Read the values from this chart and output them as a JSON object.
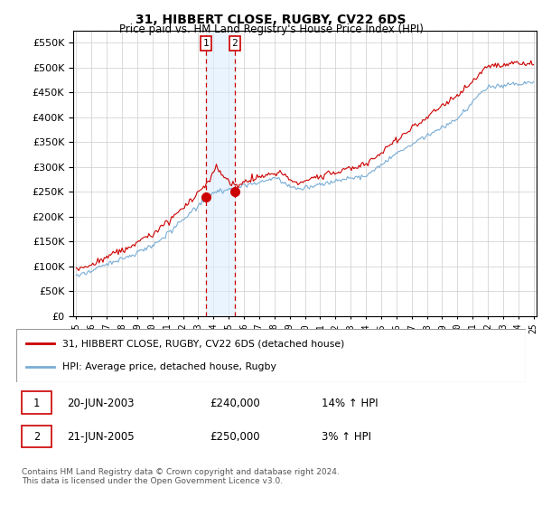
{
  "title": "31, HIBBERT CLOSE, RUGBY, CV22 6DS",
  "subtitle": "Price paid vs. HM Land Registry's House Price Index (HPI)",
  "legend_line1": "31, HIBBERT CLOSE, RUGBY, CV22 6DS (detached house)",
  "legend_line2": "HPI: Average price, detached house, Rugby",
  "sale1_label": "1",
  "sale1_date": "20-JUN-2003",
  "sale1_price": "£240,000",
  "sale1_hpi": "14% ↑ HPI",
  "sale2_label": "2",
  "sale2_date": "21-JUN-2005",
  "sale2_price": "£250,000",
  "sale2_hpi": "3% ↑ HPI",
  "footer": "Contains HM Land Registry data © Crown copyright and database right 2024.\nThis data is licensed under the Open Government Licence v3.0.",
  "year_start": 1995,
  "year_end": 2025,
  "ylim_min": 0,
  "ylim_max": 575000,
  "sale1_year": 2003.5,
  "sale1_value": 240000,
  "sale2_year": 2005.4,
  "sale2_value": 250000,
  "red_color": "#cc0000",
  "blue_color": "#7aaed6",
  "grid_color": "#cccccc",
  "highlight_color": "#ddeeff",
  "bg_color": "#ffffff"
}
